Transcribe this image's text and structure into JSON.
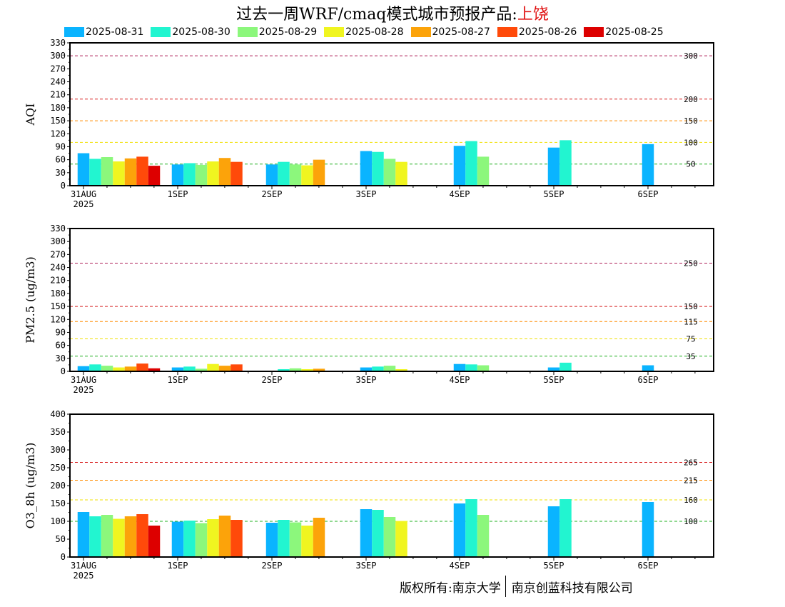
{
  "title": {
    "prefix": "过去一周WRF/cmaq模式城市预报产品:",
    "city": "上饶"
  },
  "legend": [
    {
      "label": "2025-08-31",
      "color": "#0ab4ff"
    },
    {
      "label": "2025-08-30",
      "color": "#22f5d0"
    },
    {
      "label": "2025-08-29",
      "color": "#8cf77c"
    },
    {
      "label": "2025-08-28",
      "color": "#f0f520"
    },
    {
      "label": "2025-08-27",
      "color": "#fca30a"
    },
    {
      "label": "2025-08-26",
      "color": "#ff4a0a"
    },
    {
      "label": "2025-08-25",
      "color": "#dd0000"
    }
  ],
  "footer": {
    "left": "版权所有:南京大学",
    "right": "南京创蓝科技有限公司"
  },
  "chart_data": [
    {
      "type": "bar",
      "ylabel": "AQI",
      "ylim": [
        0,
        330
      ],
      "yticks": [
        0,
        30,
        60,
        90,
        120,
        150,
        180,
        210,
        240,
        270,
        300,
        330
      ],
      "categories": [
        "31AUG\n2025",
        "1SEP",
        "2SEP",
        "3SEP",
        "4SEP",
        "5SEP",
        "6SEP"
      ],
      "thresholds": [
        {
          "value": 300,
          "label": "300",
          "color": "#b0205a"
        },
        {
          "value": 200,
          "label": "200",
          "color": "#d82020"
        },
        {
          "value": 150,
          "label": "150",
          "color": "#ff8c00"
        },
        {
          "value": 100,
          "label": "100",
          "color": "#f0e000"
        },
        {
          "value": 50,
          "label": "50",
          "color": "#20b020"
        }
      ],
      "series": [
        {
          "name": "2025-08-31",
          "values": [
            75,
            49,
            49,
            80,
            92,
            88,
            96
          ]
        },
        {
          "name": "2025-08-30",
          "values": [
            62,
            52,
            55,
            78,
            103,
            105,
            null
          ]
        },
        {
          "name": "2025-08-29",
          "values": [
            66,
            48,
            49,
            62,
            67,
            null,
            null
          ]
        },
        {
          "name": "2025-08-28",
          "values": [
            56,
            56,
            47,
            55,
            null,
            null,
            null
          ]
        },
        {
          "name": "2025-08-27",
          "values": [
            63,
            64,
            60,
            null,
            null,
            null,
            null
          ]
        },
        {
          "name": "2025-08-26",
          "values": [
            67,
            55,
            null,
            null,
            null,
            null,
            null
          ]
        },
        {
          "name": "2025-08-25",
          "values": [
            46,
            null,
            null,
            null,
            null,
            null,
            null
          ]
        }
      ]
    },
    {
      "type": "bar",
      "ylabel": "PM2.5 (ug/m3)",
      "ylim": [
        0,
        330
      ],
      "yticks": [
        0,
        30,
        60,
        90,
        120,
        150,
        180,
        210,
        240,
        270,
        300,
        330
      ],
      "categories": [
        "31AUG\n2025",
        "1SEP",
        "2SEP",
        "3SEP",
        "4SEP",
        "5SEP",
        "6SEP"
      ],
      "thresholds": [
        {
          "value": 250,
          "label": "250",
          "color": "#b0205a"
        },
        {
          "value": 150,
          "label": "150",
          "color": "#d82020"
        },
        {
          "value": 115,
          "label": "115",
          "color": "#ff8c00"
        },
        {
          "value": 75,
          "label": "75",
          "color": "#f0e000"
        },
        {
          "value": 35,
          "label": "35",
          "color": "#20b020"
        }
      ],
      "series": [
        {
          "name": "2025-08-31",
          "values": [
            12,
            9,
            1,
            9,
            17,
            9,
            14
          ]
        },
        {
          "name": "2025-08-30",
          "values": [
            16,
            11,
            5,
            11,
            16,
            20,
            null
          ]
        },
        {
          "name": "2025-08-29",
          "values": [
            13,
            6,
            7,
            13,
            14,
            null,
            null
          ]
        },
        {
          "name": "2025-08-28",
          "values": [
            9,
            17,
            5,
            5,
            null,
            null,
            null
          ]
        },
        {
          "name": "2025-08-27",
          "values": [
            11,
            13,
            6,
            null,
            null,
            null,
            null
          ]
        },
        {
          "name": "2025-08-26",
          "values": [
            18,
            16,
            null,
            null,
            null,
            null,
            null
          ]
        },
        {
          "name": "2025-08-25",
          "values": [
            7,
            null,
            null,
            null,
            null,
            null,
            null
          ]
        }
      ]
    },
    {
      "type": "bar",
      "ylabel": "O3_8h (ug/m3)",
      "ylim": [
        0,
        400
      ],
      "yticks": [
        0,
        50,
        100,
        150,
        200,
        250,
        300,
        350,
        400
      ],
      "categories": [
        "31AUG\n2025",
        "1SEP",
        "2SEP",
        "3SEP",
        "4SEP",
        "5SEP",
        "6SEP"
      ],
      "thresholds": [
        {
          "value": 265,
          "label": "265",
          "color": "#d82020"
        },
        {
          "value": 215,
          "label": "215",
          "color": "#ff8c00"
        },
        {
          "value": 160,
          "label": "160",
          "color": "#f0e000"
        },
        {
          "value": 100,
          "label": "100",
          "color": "#20b020"
        }
      ],
      "series": [
        {
          "name": "2025-08-31",
          "values": [
            126,
            99,
            96,
            134,
            150,
            142,
            154
          ]
        },
        {
          "name": "2025-08-30",
          "values": [
            114,
            102,
            104,
            132,
            162,
            162,
            null
          ]
        },
        {
          "name": "2025-08-29",
          "values": [
            118,
            95,
            97,
            112,
            118,
            null,
            null
          ]
        },
        {
          "name": "2025-08-28",
          "values": [
            107,
            106,
            88,
            101,
            null,
            null,
            null
          ]
        },
        {
          "name": "2025-08-27",
          "values": [
            114,
            116,
            110,
            null,
            null,
            null,
            null
          ]
        },
        {
          "name": "2025-08-26",
          "values": [
            120,
            104,
            null,
            null,
            null,
            null,
            null
          ]
        },
        {
          "name": "2025-08-25",
          "values": [
            88,
            null,
            null,
            null,
            null,
            null,
            null
          ]
        }
      ]
    }
  ]
}
